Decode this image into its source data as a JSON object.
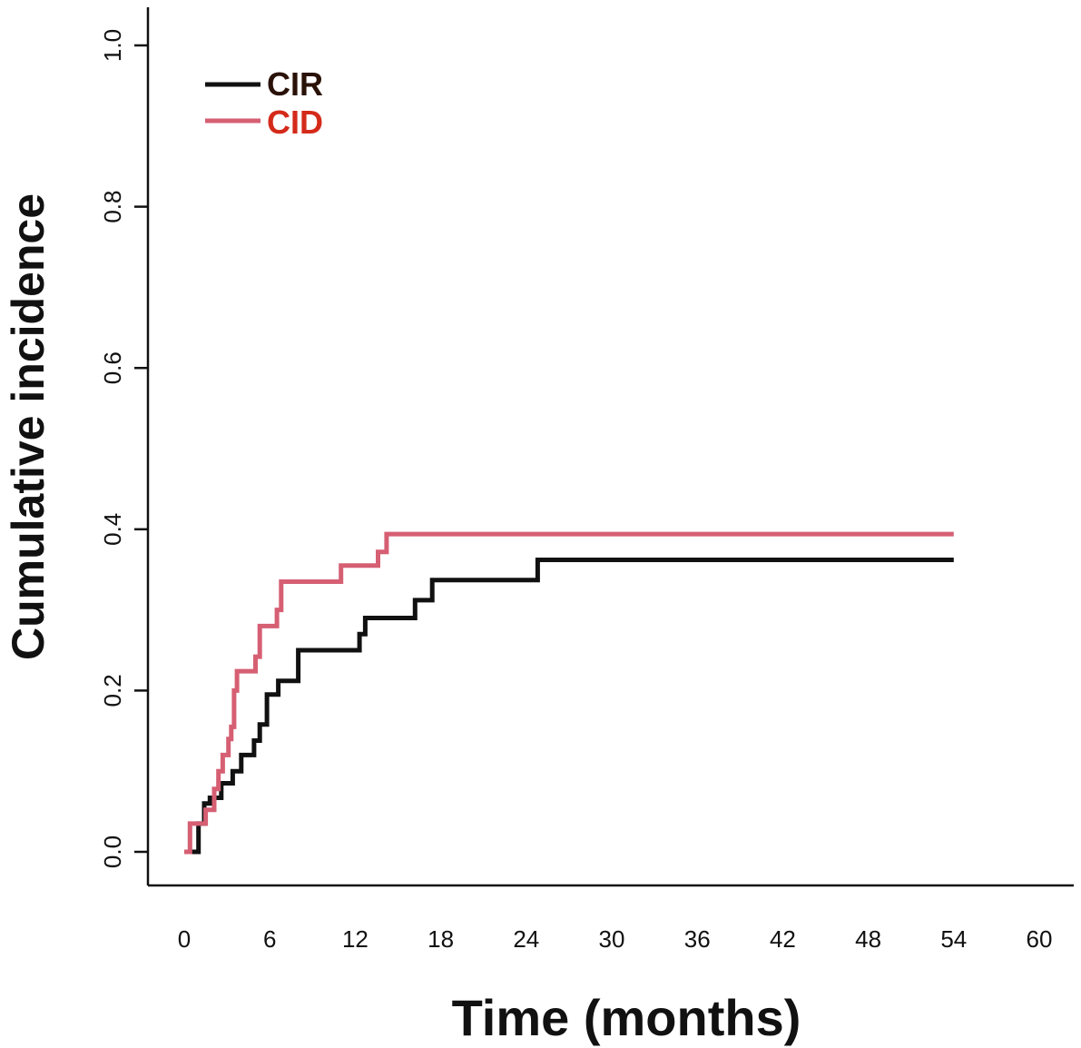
{
  "chart_data": {
    "type": "line",
    "step": true,
    "title": "",
    "xlabel": "Time (months)",
    "ylabel": "Cumulative incidence",
    "xlim": [
      0,
      60
    ],
    "ylim": [
      0,
      1
    ],
    "x_ticks": [
      0,
      6,
      12,
      18,
      24,
      30,
      36,
      42,
      48,
      54,
      60
    ],
    "y_ticks": [
      0.0,
      0.2,
      0.4,
      0.6,
      0.8,
      1.0
    ],
    "y_tick_labels": [
      "0.0",
      "0.2",
      "0.4",
      "0.6",
      "0.8",
      "1.0"
    ],
    "legend_position": "top-left",
    "series": [
      {
        "name": "CIR",
        "color": "#111111",
        "label_color": "#2a1208",
        "points": [
          [
            0,
            0.0
          ],
          [
            0.8,
            0.0
          ],
          [
            1.0,
            0.035
          ],
          [
            1.4,
            0.06
          ],
          [
            1.8,
            0.067
          ],
          [
            2.6,
            0.085
          ],
          [
            3.4,
            0.1
          ],
          [
            4.0,
            0.12
          ],
          [
            4.9,
            0.138
          ],
          [
            5.3,
            0.158
          ],
          [
            5.8,
            0.195
          ],
          [
            6.6,
            0.212
          ],
          [
            8.0,
            0.25
          ],
          [
            12.3,
            0.27
          ],
          [
            12.7,
            0.29
          ],
          [
            16.2,
            0.312
          ],
          [
            17.4,
            0.337
          ],
          [
            24.8,
            0.362
          ],
          [
            54,
            0.362
          ]
        ]
      },
      {
        "name": "CID",
        "color": "#d65f73",
        "label_color": "#d42a1a",
        "points": [
          [
            0,
            0.0
          ],
          [
            0.4,
            0.035
          ],
          [
            1.5,
            0.052
          ],
          [
            2.1,
            0.078
          ],
          [
            2.4,
            0.1
          ],
          [
            2.7,
            0.12
          ],
          [
            3.1,
            0.14
          ],
          [
            3.3,
            0.155
          ],
          [
            3.5,
            0.2
          ],
          [
            3.7,
            0.224
          ],
          [
            5.0,
            0.242
          ],
          [
            5.3,
            0.28
          ],
          [
            6.5,
            0.3
          ],
          [
            6.8,
            0.335
          ],
          [
            11.0,
            0.355
          ],
          [
            13.6,
            0.372
          ],
          [
            14.2,
            0.394
          ],
          [
            54,
            0.394
          ]
        ]
      }
    ]
  }
}
